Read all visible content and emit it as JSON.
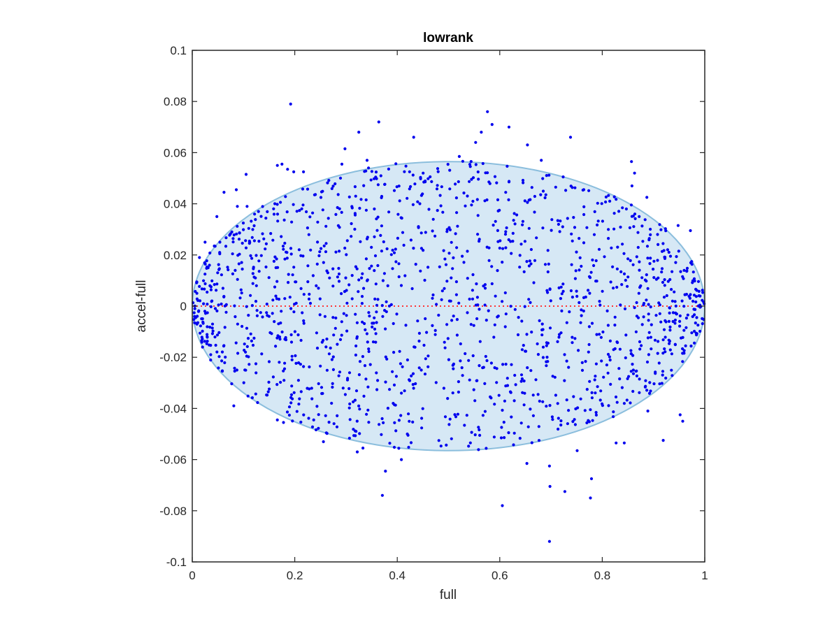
{
  "chart_data": {
    "type": "scatter",
    "title": "lowrank",
    "xlabel": "full",
    "ylabel": "accel-full",
    "xlim": [
      0,
      1
    ],
    "ylim": [
      -0.1,
      0.1
    ],
    "xticks": [
      "0",
      "0.2",
      "0.4",
      "0.6",
      "0.8",
      "1"
    ],
    "xtick_values": [
      0,
      0.2,
      0.4,
      0.6,
      0.8,
      1
    ],
    "yticks": [
      "0.1",
      "0.08",
      "0.06",
      "0.04",
      "0.02",
      "0",
      "-0.02",
      "-0.04",
      "-0.06",
      "-0.08",
      "-0.1"
    ],
    "ytick_values": [
      0.1,
      0.08,
      0.06,
      0.04,
      0.02,
      0,
      -0.02,
      -0.04,
      -0.06,
      -0.08,
      -0.1
    ],
    "grid": false,
    "box": true,
    "point_color": "#0000ee",
    "reference_line": {
      "y": 0,
      "style": "dotted",
      "color": "#ff3333"
    },
    "ellipse": {
      "center": [
        0.5,
        0
      ],
      "x_radius": 0.5,
      "y_radius": 0.0565,
      "fill": "#d6e8f5",
      "stroke": "#8bbedd"
    },
    "points": [
      [
        0.192,
        0.079
      ],
      [
        0.576,
        0.076
      ],
      [
        0.364,
        0.072
      ],
      [
        0.585,
        0.071
      ],
      [
        0.618,
        0.07
      ],
      [
        0.325,
        0.068
      ],
      [
        0.564,
        0.068
      ],
      [
        0.738,
        0.066
      ],
      [
        0.432,
        0.066
      ],
      [
        0.553,
        0.064
      ],
      [
        0.654,
        0.063
      ],
      [
        0.298,
        0.0615
      ],
      [
        0.521,
        0.0585
      ],
      [
        0.341,
        0.057
      ],
      [
        0.681,
        0.057
      ],
      [
        0.857,
        0.0565
      ],
      [
        0.292,
        0.0555
      ],
      [
        0.175,
        0.0555
      ],
      [
        0.166,
        0.055
      ],
      [
        0.186,
        0.0535
      ],
      [
        0.217,
        0.0525
      ],
      [
        0.105,
        0.0515
      ],
      [
        0.198,
        0.0525
      ],
      [
        0.863,
        0.052
      ],
      [
        0.858,
        0.047
      ],
      [
        0.086,
        0.0455
      ],
      [
        0.062,
        0.0445
      ],
      [
        0.887,
        0.0425
      ],
      [
        0.107,
        0.039
      ],
      [
        0.088,
        0.039
      ],
      [
        0.048,
        0.035
      ],
      [
        0.872,
        0.035
      ],
      [
        0.948,
        0.0315
      ],
      [
        0.972,
        0.0295
      ],
      [
        0.025,
        0.025
      ],
      [
        0.043,
        0.0235
      ],
      [
        0.014,
        0.019
      ],
      [
        0.031,
        0.015
      ],
      [
        0.605,
        -0.078
      ],
      [
        0.697,
        -0.092
      ],
      [
        0.371,
        -0.074
      ],
      [
        0.777,
        -0.075
      ],
      [
        0.698,
        -0.0705
      ],
      [
        0.727,
        -0.0725
      ],
      [
        0.779,
        -0.0675
      ],
      [
        0.377,
        -0.0645
      ],
      [
        0.697,
        -0.0625
      ],
      [
        0.408,
        -0.06
      ],
      [
        0.653,
        -0.0615
      ],
      [
        0.333,
        -0.0555
      ],
      [
        0.751,
        -0.0565
      ],
      [
        0.322,
        -0.057
      ],
      [
        0.256,
        -0.053
      ],
      [
        0.827,
        -0.0535
      ],
      [
        0.843,
        -0.0535
      ],
      [
        0.919,
        -0.0525
      ],
      [
        0.421,
        -0.0505
      ],
      [
        0.603,
        -0.0515
      ],
      [
        0.166,
        -0.0445
      ],
      [
        0.178,
        -0.0455
      ],
      [
        0.237,
        -0.0445
      ],
      [
        0.081,
        -0.039
      ],
      [
        0.957,
        -0.045
      ],
      [
        0.889,
        -0.041
      ],
      [
        0.952,
        -0.0425
      ],
      [
        0.029,
        -0.012
      ],
      [
        0.036,
        -0.019
      ],
      [
        0.02,
        -0.016
      ]
    ]
  }
}
